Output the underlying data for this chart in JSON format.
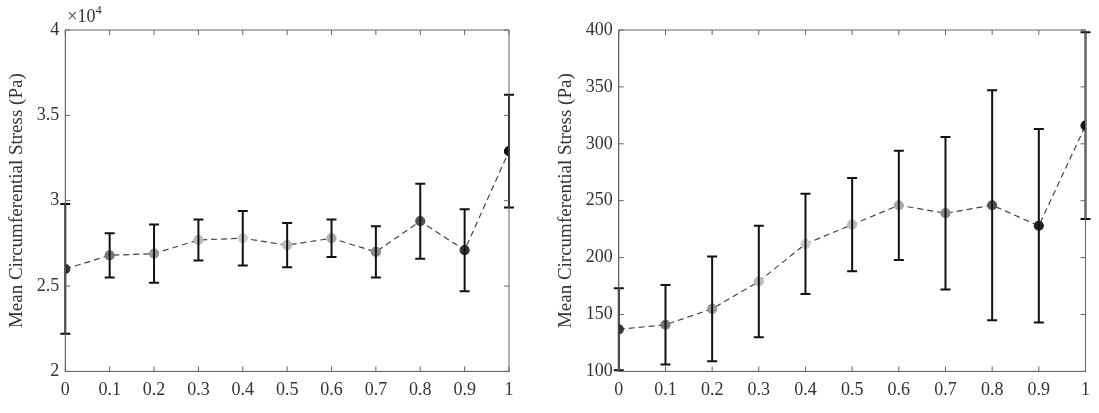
{
  "chart_data": [
    {
      "type": "line",
      "ylabel": "Mean Circumferential Stress (Pa)",
      "annotations": [
        "×10$^{4}$"
      ],
      "x": [
        0,
        0.1,
        0.2,
        0.3,
        0.4,
        0.5,
        0.6,
        0.7,
        0.8,
        0.9,
        1
      ],
      "series": [
        {
          "color": "#444444",
          "colors": [
            "#333333",
            "#777777",
            "#999999",
            "#bbbbbb",
            "#cccccc",
            "#bbbbbb",
            "#aaaaaa",
            "#888888",
            "#555555",
            "#333333",
            "#111111"
          ],
          "values": [
            2.6,
            2.68,
            2.69,
            2.77,
            2.78,
            2.74,
            2.78,
            2.7,
            2.88,
            2.71,
            3.29
          ],
          "errors": [
            0.38,
            0.13,
            0.17,
            0.12,
            0.16,
            0.13,
            0.11,
            0.15,
            0.22,
            0.24,
            0.33
          ]
        }
      ],
      "xlim": [
        0,
        1
      ],
      "xticks": [
        0,
        0.1,
        0.2,
        0.3,
        0.4,
        0.5,
        0.6,
        0.7,
        0.8,
        0.9,
        1
      ],
      "ylim": [
        2,
        4
      ],
      "yticks": [
        2,
        2.5,
        3,
        3.5,
        4
      ],
      "line_style": "dashed",
      "marker": "circle",
      "legend": false
    },
    {
      "type": "line",
      "ylabel": "Mean Circumferential Stress (Pa)",
      "x": [
        0,
        0.1,
        0.2,
        0.3,
        0.4,
        0.5,
        0.6,
        0.7,
        0.8,
        0.9,
        1
      ],
      "series": [
        {
          "color": "#444444",
          "colors": [
            "#333333",
            "#777777",
            "#999999",
            "#bbbbbb",
            "#cccccc",
            "#bbbbbb",
            "#aaaaaa",
            "#888888",
            "#555555",
            "#222222",
            "#111111"
          ],
          "values": [
            137,
            141,
            155,
            179,
            212,
            229,
            246,
            239,
            246,
            228,
            316
          ],
          "errors": [
            36,
            35,
            46,
            49,
            44,
            41,
            48,
            67,
            101,
            85,
            82
          ]
        }
      ],
      "xlim": [
        0,
        1
      ],
      "xticks": [
        0,
        0.1,
        0.2,
        0.3,
        0.4,
        0.5,
        0.6,
        0.7,
        0.8,
        0.9,
        1
      ],
      "ylim": [
        100,
        400
      ],
      "yticks": [
        100,
        150,
        200,
        250,
        300,
        350,
        400
      ],
      "line_style": "dashed",
      "marker": "circle",
      "legend": false
    }
  ]
}
